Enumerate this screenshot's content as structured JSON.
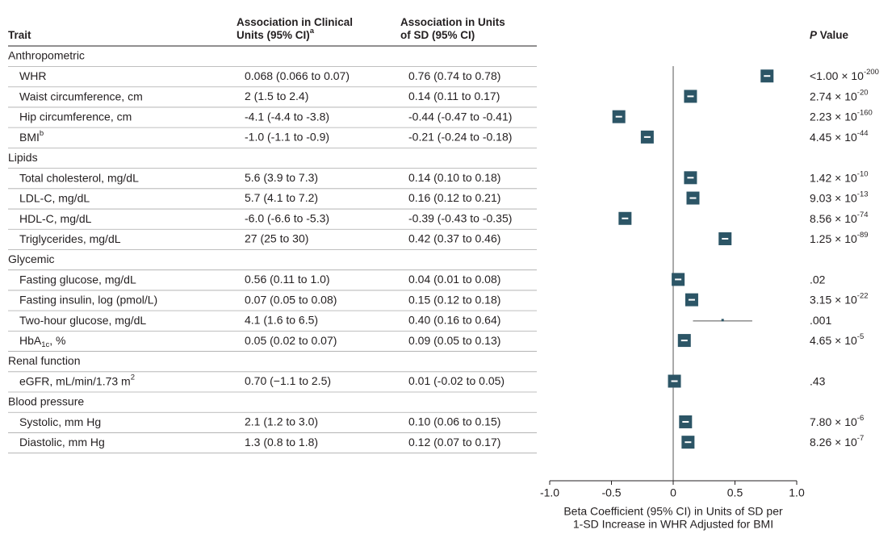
{
  "chart_data": {
    "type": "forest",
    "color": "#2c5566",
    "headers": {
      "trait": [
        [
          "Trait"
        ]
      ],
      "clinical": [
        [
          "Association in Clinical"
        ],
        [
          "Units (95% CI)",
          {
            "sup": "a"
          }
        ]
      ],
      "sd": [
        [
          "Association in Units"
        ],
        [
          "of SD (95% CI)"
        ]
      ],
      "p": [
        [
          {
            "italic": "P"
          },
          " Value"
        ]
      ]
    },
    "groups": [
      {
        "name": "Anthropometric",
        "rows": [
          {
            "trait": [
              "WHR"
            ],
            "clinical": "0.068 (0.066 to 0.07)",
            "sd": "0.76 (0.74 to 0.78)",
            "estimate": 0.76,
            "lower": 0.74,
            "upper": 0.78,
            "p": [
              "<1.00 × 10",
              {
                "sup": "-200"
              }
            ]
          },
          {
            "trait": [
              "Waist circumference, cm"
            ],
            "clinical": "2 (1.5 to 2.4)",
            "sd": "0.14 (0.11 to 0.17)",
            "estimate": 0.14,
            "lower": 0.11,
            "upper": 0.17,
            "p": [
              "2.74 × 10",
              {
                "sup": "-20"
              }
            ]
          },
          {
            "trait": [
              "Hip circumference, cm"
            ],
            "clinical": "-4.1 (-4.4 to -3.8)",
            "sd": "-0.44 (-0.47 to -0.41)",
            "estimate": -0.44,
            "lower": -0.47,
            "upper": -0.41,
            "p": [
              "2.23 × 10",
              {
                "sup": "-160"
              }
            ]
          },
          {
            "trait": [
              "BMI",
              {
                "sup": "b"
              }
            ],
            "clinical": "-1.0 (-1.1 to -0.9)",
            "sd": "-0.21 (-0.24 to -0.18)",
            "estimate": -0.21,
            "lower": -0.24,
            "upper": -0.18,
            "p": [
              "4.45 × 10",
              {
                "sup": "-44"
              }
            ]
          }
        ]
      },
      {
        "name": "Lipids",
        "rows": [
          {
            "trait": [
              "Total cholesterol, mg/dL"
            ],
            "clinical": "5.6 (3.9 to 7.3)",
            "sd": "0.14 (0.10 to 0.18)",
            "estimate": 0.14,
            "lower": 0.1,
            "upper": 0.18,
            "p": [
              "1.42 × 10",
              {
                "sup": "-10"
              }
            ]
          },
          {
            "trait": [
              "LDL-C, mg/dL"
            ],
            "clinical": "5.7 (4.1 to 7.2)",
            "sd": "0.16 (0.12 to 0.21)",
            "estimate": 0.16,
            "lower": 0.12,
            "upper": 0.21,
            "p": [
              "9.03 × 10",
              {
                "sup": "-13"
              }
            ]
          },
          {
            "trait": [
              "HDL-C, mg/dL"
            ],
            "clinical": "-6.0 (-6.6 to -5.3)",
            "sd": "-0.39 (-0.43 to -0.35)",
            "estimate": -0.39,
            "lower": -0.43,
            "upper": -0.35,
            "p": [
              "8.56 × 10",
              {
                "sup": "-74"
              }
            ]
          },
          {
            "trait": [
              "Triglycerides, mg/dL"
            ],
            "clinical": "27 (25 to 30)",
            "sd": "0.42 (0.37 to 0.46)",
            "estimate": 0.42,
            "lower": 0.37,
            "upper": 0.46,
            "p": [
              "1.25 × 10",
              {
                "sup": "-89"
              }
            ]
          }
        ]
      },
      {
        "name": "Glycemic",
        "rows": [
          {
            "trait": [
              "Fasting glucose, mg/dL"
            ],
            "clinical": "0.56 (0.11 to 1.0)",
            "sd": "0.04 (0.01 to 0.08)",
            "estimate": 0.04,
            "lower": 0.01,
            "upper": 0.08,
            "p": [
              ".02"
            ]
          },
          {
            "trait": [
              "Fasting insulin, log (pmol/L)"
            ],
            "clinical": "0.07 (0.05 to 0.08)",
            "sd": "0.15 (0.12 to 0.18)",
            "estimate": 0.15,
            "lower": 0.12,
            "upper": 0.18,
            "p": [
              "3.15 × 10",
              {
                "sup": "-22"
              }
            ]
          },
          {
            "trait": [
              "Two-hour glucose, mg/dL"
            ],
            "clinical": "4.1 (1.6 to 6.5)",
            "sd": "0.40 (0.16 to 0.64)",
            "estimate": 0.4,
            "lower": 0.16,
            "upper": 0.64,
            "p": [
              ".001"
            ]
          },
          {
            "trait": [
              "HbA",
              {
                "sub": "1c"
              },
              ", %"
            ],
            "clinical": "0.05 (0.02 to 0.07)",
            "sd": "0.09 (0.05 to 0.13)",
            "estimate": 0.09,
            "lower": 0.05,
            "upper": 0.13,
            "p": [
              "4.65 × 10",
              {
                "sup": "-5"
              }
            ]
          }
        ]
      },
      {
        "name": "Renal function",
        "rows": [
          {
            "trait": [
              "eGFR, mL/min/1.73 m",
              {
                "sup": "2"
              }
            ],
            "clinical": "0.70 (−1.1 to 2.5)",
            "sd": "0.01 (-0.02 to 0.05)",
            "estimate": 0.01,
            "lower": -0.02,
            "upper": 0.05,
            "p": [
              ".43"
            ]
          }
        ]
      },
      {
        "name": "Blood pressure",
        "rows": [
          {
            "trait": [
              "Systolic, mm Hg"
            ],
            "clinical": "2.1 (1.2 to 3.0)",
            "sd": "0.10 (0.06 to 0.15)",
            "estimate": 0.1,
            "lower": 0.06,
            "upper": 0.15,
            "p": [
              "7.80 × 10",
              {
                "sup": "-6"
              }
            ]
          },
          {
            "trait": [
              "Diastolic, mm Hg"
            ],
            "clinical": "1.3 (0.8 to 1.8)",
            "sd": "0.12 (0.07 to 0.17)",
            "estimate": 0.12,
            "lower": 0.07,
            "upper": 0.17,
            "p": [
              "8.26 × 10",
              {
                "sup": "-7"
              }
            ]
          }
        ]
      }
    ],
    "xlim": [
      -1,
      1
    ],
    "xticks": [
      {
        "value": -1,
        "label": "-1.0"
      },
      -0.5,
      0,
      0.5,
      {
        "value": 1,
        "label": "1.0"
      }
    ],
    "xlabel": [
      "Beta Coefficient (95% CI) in Units of SD per",
      "1-SD Increase in WHR Adjusted for BMI"
    ]
  }
}
